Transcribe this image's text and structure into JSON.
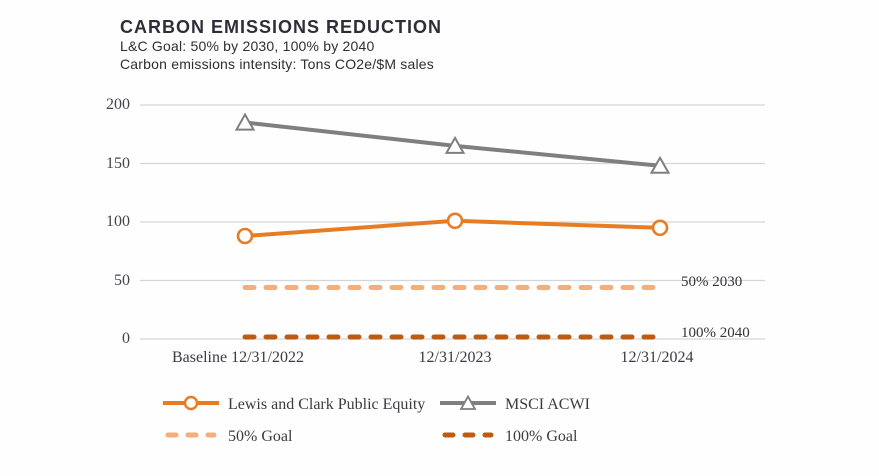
{
  "header": {
    "title": "CARBON EMISSIONS REDUCTION",
    "subtitle1": "L&C Goal: 50% by 2030, 100% by 2040",
    "subtitle2": "Carbon emissions intensity: Tons CO2e/$M sales"
  },
  "chart_data": {
    "type": "line",
    "title": "CARBON EMISSIONS REDUCTION",
    "ylabel": "Carbon emissions intensity: Tons CO2e/$M sales",
    "x_labels": [
      "Baseline 12/31/2022",
      "12/31/2023",
      "12/31/2024"
    ],
    "ylim": [
      0,
      200
    ],
    "yticks": [
      200,
      150,
      100,
      50,
      0
    ],
    "grid": "horizontal",
    "legend_position": "bottom",
    "series": [
      {
        "name": "Lewis and Clark Public Equity",
        "values": [
          88,
          101,
          95
        ],
        "color": "#E87C22",
        "marker": "circle",
        "style": "solid"
      },
      {
        "name": "MSCI ACWI",
        "values": [
          185,
          165,
          148
        ],
        "color": "#7F7F7F",
        "marker": "triangle",
        "style": "solid"
      },
      {
        "name": "50% Goal",
        "values": [
          44,
          44,
          44
        ],
        "color": "#F2AE7B",
        "marker": "none",
        "style": "dashed",
        "end_label": "50% 2030"
      },
      {
        "name": "100% Goal",
        "values": [
          0,
          0,
          0
        ],
        "color": "#BE5B0E",
        "marker": "none",
        "style": "dashed",
        "end_label": "100% 2040"
      }
    ]
  }
}
